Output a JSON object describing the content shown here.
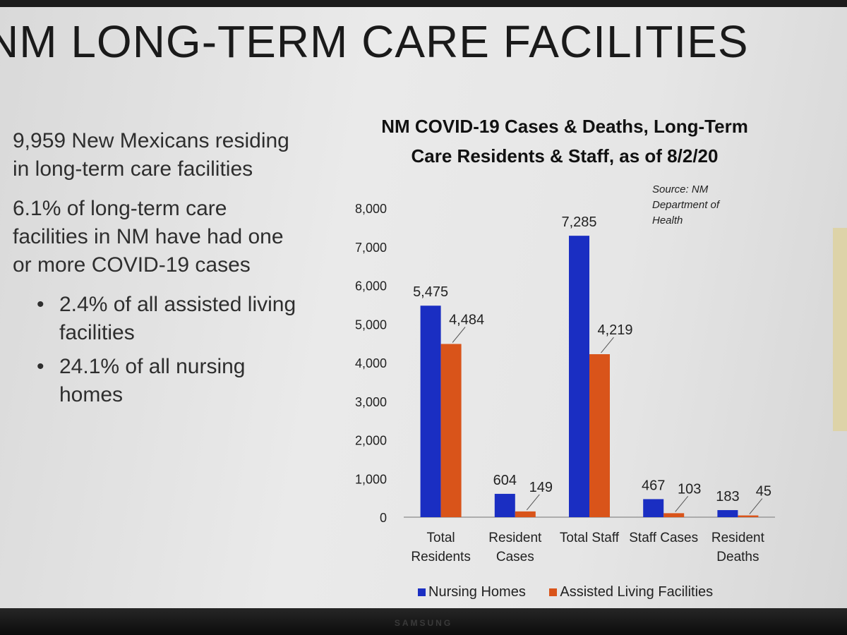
{
  "slide": {
    "title": "NM LONG-TERM CARE FACILITIES",
    "paragraphs": [
      "9,959 New Mexicans residing in long-term care facilities",
      "6.1% of long-term care facilities in NM have had one or more COVID-19 cases"
    ],
    "bullets": [
      "2.4% of all assisted living facilities",
      "24.1% of all nursing homes"
    ],
    "bullet_glyph": "•",
    "source": "Source: NM Department of Health",
    "monitor_brand": "SAMSUNG"
  },
  "chart_data": {
    "type": "bar",
    "title": "NM COVID-19 Cases & Deaths, Long-Term Care Residents & Staff, as of 8/2/20",
    "categories": [
      [
        "Total",
        "Residents"
      ],
      [
        "Resident",
        "Cases"
      ],
      [
        "Total Staff"
      ],
      [
        "Staff Cases"
      ],
      [
        "Resident",
        "Deaths"
      ]
    ],
    "series": [
      {
        "name": "Nursing Homes",
        "values": [
          5475,
          604,
          7285,
          467,
          183
        ],
        "labels": [
          "5,475",
          "604",
          "7,285",
          "467",
          "183"
        ],
        "color": "#1a2ec2"
      },
      {
        "name": "Assisted Living Facilities",
        "values": [
          4484,
          149,
          4219,
          103,
          45
        ],
        "labels": [
          "4,484",
          "149",
          "4,219",
          "103",
          "45"
        ],
        "color": "#d9541a"
      }
    ],
    "ylim": [
      0,
      8000
    ],
    "yticks": [
      0,
      1000,
      2000,
      3000,
      4000,
      5000,
      6000,
      7000,
      8000
    ],
    "ytick_labels": [
      "0",
      "1,000",
      "2,000",
      "3,000",
      "4,000",
      "5,000",
      "6,000",
      "7,000",
      "8,000"
    ],
    "grid": false,
    "legend_position": "bottom"
  }
}
